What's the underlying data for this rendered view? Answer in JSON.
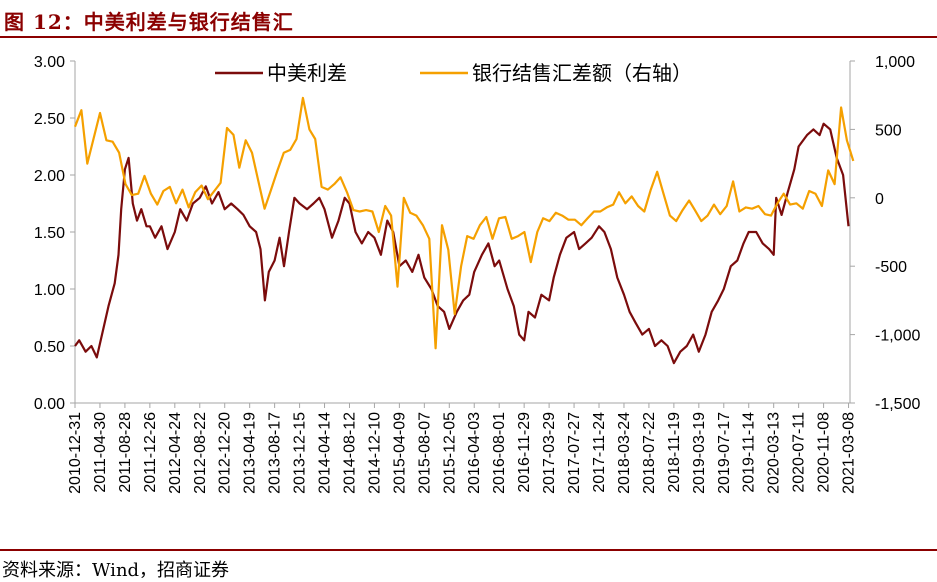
{
  "header": {
    "title": "图 12：中美利差与银行结售汇"
  },
  "footer": {
    "source": "资料来源：Wind，招商证券"
  },
  "chart_data": {
    "type": "line",
    "title": "",
    "x_tick_labels": [
      "2010-12-31",
      "2011-04-30",
      "2011-08-28",
      "2011-12-26",
      "2012-04-24",
      "2012-08-22",
      "2012-12-20",
      "2013-04-19",
      "2013-08-17",
      "2013-12-15",
      "2014-04-14",
      "2014-08-12",
      "2014-12-10",
      "2015-04-09",
      "2015-08-07",
      "2015-12-05",
      "2016-04-03",
      "2016-08-01",
      "2016-11-29",
      "2017-03-29",
      "2017-07-27",
      "2017-11-24",
      "2018-03-24",
      "2018-07-22",
      "2018-11-19",
      "2019-03-19",
      "2019-07-17",
      "2019-11-14",
      "2020-03-13",
      "2020-07-11",
      "2020-11-08",
      "2021-03-08"
    ],
    "y_left": {
      "ylim": [
        0,
        3
      ],
      "ticks": [
        "0.00",
        "0.50",
        "1.00",
        "1.50",
        "2.00",
        "2.50",
        "3.00"
      ]
    },
    "y_right": {
      "ylim": [
        -1500,
        1000
      ],
      "ticks": [
        "-1,500",
        "-1,000",
        "-500",
        "0",
        "500",
        "1,000"
      ]
    },
    "legend_position": "top",
    "series": [
      {
        "name": "中美利差",
        "axis": "left",
        "color": "#7B0C0C",
        "points": [
          [
            "2010-12-31",
            0.5
          ],
          [
            "2011-01-20",
            0.55
          ],
          [
            "2011-02-20",
            0.45
          ],
          [
            "2011-03-20",
            0.5
          ],
          [
            "2011-04-15",
            0.4
          ],
          [
            "2011-05-10",
            0.6
          ],
          [
            "2011-06-10",
            0.85
          ],
          [
            "2011-07-10",
            1.05
          ],
          [
            "2011-07-28",
            1.3
          ],
          [
            "2011-08-10",
            1.7
          ],
          [
            "2011-08-28",
            2.05
          ],
          [
            "2011-09-15",
            2.15
          ],
          [
            "2011-10-05",
            1.75
          ],
          [
            "2011-10-25",
            1.6
          ],
          [
            "2011-11-15",
            1.7
          ],
          [
            "2011-12-10",
            1.55
          ],
          [
            "2011-12-26",
            1.55
          ],
          [
            "2012-01-20",
            1.45
          ],
          [
            "2012-02-20",
            1.55
          ],
          [
            "2012-03-20",
            1.35
          ],
          [
            "2012-04-24",
            1.5
          ],
          [
            "2012-05-20",
            1.7
          ],
          [
            "2012-06-20",
            1.6
          ],
          [
            "2012-07-20",
            1.75
          ],
          [
            "2012-08-22",
            1.8
          ],
          [
            "2012-09-20",
            1.9
          ],
          [
            "2012-10-20",
            1.75
          ],
          [
            "2012-11-20",
            1.85
          ],
          [
            "2012-12-20",
            1.7
          ],
          [
            "2013-01-20",
            1.75
          ],
          [
            "2013-02-20",
            1.7
          ],
          [
            "2013-03-20",
            1.65
          ],
          [
            "2013-04-19",
            1.55
          ],
          [
            "2013-05-20",
            1.5
          ],
          [
            "2013-06-10",
            1.35
          ],
          [
            "2013-07-01",
            0.9
          ],
          [
            "2013-07-20",
            1.15
          ],
          [
            "2013-08-17",
            1.25
          ],
          [
            "2013-09-10",
            1.45
          ],
          [
            "2013-10-01",
            1.2
          ],
          [
            "2013-10-25",
            1.5
          ],
          [
            "2013-11-20",
            1.8
          ],
          [
            "2013-12-15",
            1.75
          ],
          [
            "2014-01-20",
            1.7
          ],
          [
            "2014-02-20",
            1.75
          ],
          [
            "2014-03-20",
            1.8
          ],
          [
            "2014-04-14",
            1.7
          ],
          [
            "2014-05-20",
            1.45
          ],
          [
            "2014-06-20",
            1.6
          ],
          [
            "2014-07-20",
            1.8
          ],
          [
            "2014-08-12",
            1.75
          ],
          [
            "2014-09-10",
            1.5
          ],
          [
            "2014-10-10",
            1.4
          ],
          [
            "2014-11-10",
            1.5
          ],
          [
            "2014-12-10",
            1.45
          ],
          [
            "2015-01-10",
            1.3
          ],
          [
            "2015-02-10",
            1.6
          ],
          [
            "2015-03-10",
            1.5
          ],
          [
            "2015-04-09",
            1.2
          ],
          [
            "2015-05-10",
            1.25
          ],
          [
            "2015-06-10",
            1.15
          ],
          [
            "2015-07-10",
            1.3
          ],
          [
            "2015-08-07",
            1.1
          ],
          [
            "2015-09-10",
            1.0
          ],
          [
            "2015-10-10",
            0.85
          ],
          [
            "2015-11-10",
            0.8
          ],
          [
            "2015-12-05",
            0.65
          ],
          [
            "2016-01-10",
            0.8
          ],
          [
            "2016-02-10",
            0.9
          ],
          [
            "2016-03-10",
            0.95
          ],
          [
            "2016-04-03",
            1.15
          ],
          [
            "2016-05-10",
            1.3
          ],
          [
            "2016-06-10",
            1.4
          ],
          [
            "2016-07-10",
            1.2
          ],
          [
            "2016-08-01",
            1.25
          ],
          [
            "2016-09-10",
            1.0
          ],
          [
            "2016-10-10",
            0.85
          ],
          [
            "2016-11-05",
            0.6
          ],
          [
            "2016-11-29",
            0.55
          ],
          [
            "2016-12-20",
            0.8
          ],
          [
            "2017-01-20",
            0.75
          ],
          [
            "2017-02-20",
            0.95
          ],
          [
            "2017-03-29",
            0.9
          ],
          [
            "2017-04-20",
            1.1
          ],
          [
            "2017-05-20",
            1.3
          ],
          [
            "2017-06-20",
            1.45
          ],
          [
            "2017-07-27",
            1.5
          ],
          [
            "2017-08-20",
            1.35
          ],
          [
            "2017-09-20",
            1.4
          ],
          [
            "2017-10-20",
            1.45
          ],
          [
            "2017-11-24",
            1.55
          ],
          [
            "2017-12-20",
            1.5
          ],
          [
            "2018-01-20",
            1.35
          ],
          [
            "2018-02-20",
            1.1
          ],
          [
            "2018-03-24",
            0.95
          ],
          [
            "2018-04-20",
            0.8
          ],
          [
            "2018-05-20",
            0.7
          ],
          [
            "2018-06-20",
            0.6
          ],
          [
            "2018-07-22",
            0.65
          ],
          [
            "2018-08-20",
            0.5
          ],
          [
            "2018-09-20",
            0.55
          ],
          [
            "2018-10-20",
            0.5
          ],
          [
            "2018-11-19",
            0.35
          ],
          [
            "2018-12-20",
            0.45
          ],
          [
            "2019-01-20",
            0.5
          ],
          [
            "2019-02-20",
            0.6
          ],
          [
            "2019-03-19",
            0.45
          ],
          [
            "2019-04-20",
            0.6
          ],
          [
            "2019-05-20",
            0.8
          ],
          [
            "2019-06-20",
            0.9
          ],
          [
            "2019-07-17",
            1.0
          ],
          [
            "2019-08-20",
            1.2
          ],
          [
            "2019-09-20",
            1.25
          ],
          [
            "2019-10-20",
            1.4
          ],
          [
            "2019-11-14",
            1.5
          ],
          [
            "2019-12-20",
            1.5
          ],
          [
            "2020-01-20",
            1.4
          ],
          [
            "2020-02-20",
            1.35
          ],
          [
            "2020-03-13",
            1.3
          ],
          [
            "2020-03-25",
            1.8
          ],
          [
            "2020-04-20",
            1.65
          ],
          [
            "2020-05-20",
            1.85
          ],
          [
            "2020-06-20",
            2.05
          ],
          [
            "2020-07-11",
            2.25
          ],
          [
            "2020-08-20",
            2.35
          ],
          [
            "2020-09-20",
            2.4
          ],
          [
            "2020-10-20",
            2.35
          ],
          [
            "2020-11-08",
            2.45
          ],
          [
            "2020-12-10",
            2.4
          ],
          [
            "2021-01-10",
            2.15
          ],
          [
            "2021-02-10",
            2.0
          ],
          [
            "2021-03-08",
            1.55
          ]
        ]
      },
      {
        "name": "银行结售汇差额（右轴）",
        "axis": "right",
        "color": "#F5A000",
        "points": [
          [
            "2010-12-31",
            520
          ],
          [
            "2011-01-31",
            640
          ],
          [
            "2011-02-28",
            250
          ],
          [
            "2011-04-30",
            620
          ],
          [
            "2011-05-31",
            420
          ],
          [
            "2011-06-30",
            410
          ],
          [
            "2011-07-31",
            330
          ],
          [
            "2011-08-31",
            100
          ],
          [
            "2011-09-30",
            20
          ],
          [
            "2011-10-31",
            30
          ],
          [
            "2011-11-30",
            160
          ],
          [
            "2011-12-31",
            30
          ],
          [
            "2012-01-31",
            -50
          ],
          [
            "2012-02-29",
            50
          ],
          [
            "2012-03-31",
            80
          ],
          [
            "2012-04-30",
            -40
          ],
          [
            "2012-05-31",
            60
          ],
          [
            "2012-06-30",
            -70
          ],
          [
            "2012-07-31",
            40
          ],
          [
            "2012-08-31",
            90
          ],
          [
            "2012-09-30",
            -10
          ],
          [
            "2012-10-31",
            50
          ],
          [
            "2012-11-30",
            110
          ],
          [
            "2012-12-31",
            510
          ],
          [
            "2013-01-31",
            460
          ],
          [
            "2013-02-28",
            220
          ],
          [
            "2013-03-31",
            420
          ],
          [
            "2013-04-30",
            330
          ],
          [
            "2013-05-31",
            120
          ],
          [
            "2013-06-30",
            -80
          ],
          [
            "2013-07-31",
            60
          ],
          [
            "2013-08-31",
            200
          ],
          [
            "2013-09-30",
            330
          ],
          [
            "2013-10-31",
            350
          ],
          [
            "2013-11-30",
            430
          ],
          [
            "2013-12-31",
            730
          ],
          [
            "2014-01-31",
            500
          ],
          [
            "2014-02-28",
            430
          ],
          [
            "2014-03-31",
            80
          ],
          [
            "2014-04-30",
            60
          ],
          [
            "2014-05-31",
            100
          ],
          [
            "2014-06-30",
            150
          ],
          [
            "2014-07-31",
            40
          ],
          [
            "2014-08-31",
            -90
          ],
          [
            "2014-09-30",
            -100
          ],
          [
            "2014-10-31",
            -90
          ],
          [
            "2014-11-30",
            -100
          ],
          [
            "2014-12-31",
            -250
          ],
          [
            "2015-01-31",
            -60
          ],
          [
            "2015-02-28",
            -130
          ],
          [
            "2015-03-31",
            -650
          ],
          [
            "2015-04-30",
            0
          ],
          [
            "2015-05-31",
            -110
          ],
          [
            "2015-06-30",
            -130
          ],
          [
            "2015-07-31",
            -200
          ],
          [
            "2015-08-31",
            -300
          ],
          [
            "2015-09-30",
            -1100
          ],
          [
            "2015-10-31",
            -200
          ],
          [
            "2015-11-30",
            -380
          ],
          [
            "2015-12-31",
            -850
          ],
          [
            "2016-01-31",
            -500
          ],
          [
            "2016-02-29",
            -280
          ],
          [
            "2016-03-31",
            -300
          ],
          [
            "2016-04-30",
            -200
          ],
          [
            "2016-05-31",
            -140
          ],
          [
            "2016-06-30",
            -300
          ],
          [
            "2016-07-31",
            -150
          ],
          [
            "2016-08-31",
            -140
          ],
          [
            "2016-09-30",
            -300
          ],
          [
            "2016-10-31",
            -280
          ],
          [
            "2016-11-30",
            -250
          ],
          [
            "2016-12-31",
            -470
          ],
          [
            "2017-01-31",
            -250
          ],
          [
            "2017-02-28",
            -150
          ],
          [
            "2017-03-31",
            -170
          ],
          [
            "2017-04-30",
            -110
          ],
          [
            "2017-05-31",
            -130
          ],
          [
            "2017-06-30",
            -160
          ],
          [
            "2017-07-31",
            -160
          ],
          [
            "2017-08-31",
            -200
          ],
          [
            "2017-09-30",
            -150
          ],
          [
            "2017-10-31",
            -100
          ],
          [
            "2017-11-30",
            -100
          ],
          [
            "2017-12-31",
            -70
          ],
          [
            "2018-01-31",
            -50
          ],
          [
            "2018-02-28",
            40
          ],
          [
            "2018-03-31",
            -40
          ],
          [
            "2018-04-30",
            10
          ],
          [
            "2018-05-31",
            -60
          ],
          [
            "2018-06-30",
            -100
          ],
          [
            "2018-07-31",
            60
          ],
          [
            "2018-08-31",
            190
          ],
          [
            "2018-09-30",
            30
          ],
          [
            "2018-10-31",
            -130
          ],
          [
            "2018-11-30",
            -170
          ],
          [
            "2018-12-31",
            -90
          ],
          [
            "2019-01-31",
            -20
          ],
          [
            "2019-02-28",
            -90
          ],
          [
            "2019-03-31",
            -170
          ],
          [
            "2019-04-30",
            -130
          ],
          [
            "2019-05-31",
            -50
          ],
          [
            "2019-06-30",
            -120
          ],
          [
            "2019-07-31",
            -60
          ],
          [
            "2019-08-31",
            120
          ],
          [
            "2019-09-30",
            -100
          ],
          [
            "2019-10-31",
            -70
          ],
          [
            "2019-11-30",
            -80
          ],
          [
            "2019-12-31",
            -60
          ],
          [
            "2020-01-31",
            -120
          ],
          [
            "2020-02-29",
            -130
          ],
          [
            "2020-03-31",
            -40
          ],
          [
            "2020-04-30",
            30
          ],
          [
            "2020-05-31",
            -50
          ],
          [
            "2020-06-30",
            -40
          ],
          [
            "2020-07-31",
            -80
          ],
          [
            "2020-08-31",
            50
          ],
          [
            "2020-09-30",
            30
          ],
          [
            "2020-10-31",
            -60
          ],
          [
            "2020-11-30",
            200
          ],
          [
            "2020-12-31",
            100
          ],
          [
            "2021-01-31",
            660
          ],
          [
            "2021-02-28",
            420
          ],
          [
            "2021-03-31",
            270
          ]
        ]
      }
    ]
  }
}
